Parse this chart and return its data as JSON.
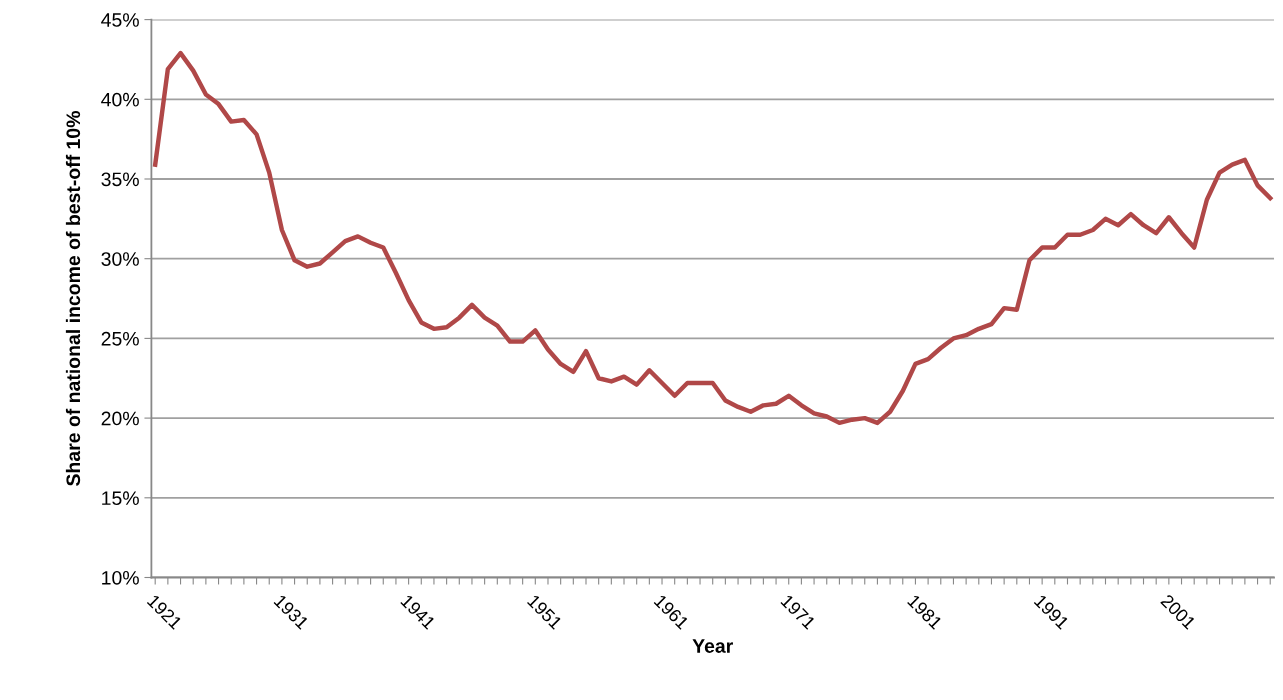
{
  "chart_data": {
    "type": "line",
    "xlabel": "Year",
    "ylabel": "Share of national income of best-off 10%",
    "categories": [
      "1921",
      null,
      null,
      null,
      null,
      null,
      null,
      null,
      null,
      null,
      "1931",
      null,
      null,
      null,
      null,
      null,
      null,
      null,
      null,
      null,
      "1941",
      null,
      null,
      null,
      null,
      null,
      null,
      null,
      null,
      null,
      "1951",
      null,
      null,
      null,
      null,
      null,
      null,
      null,
      null,
      null,
      "1961",
      null,
      null,
      null,
      null,
      null,
      null,
      null,
      null,
      null,
      "1971",
      null,
      null,
      null,
      null,
      null,
      null,
      null,
      null,
      null,
      "1981",
      null,
      null,
      null,
      null,
      null,
      null,
      null,
      null,
      null,
      "1991",
      null,
      null,
      null,
      null,
      null,
      null,
      null,
      null,
      null,
      "2001",
      null,
      null,
      null,
      null,
      null,
      null,
      null,
      null
    ],
    "series": [
      {
        "color": "#b04848",
        "values": [
          35.9,
          41.9,
          42.9,
          41.8,
          40.3,
          39.7,
          38.6,
          38.7,
          37.8,
          35.4,
          31.8,
          29.9,
          29.5,
          29.7,
          30.4,
          31.1,
          31.4,
          31.0,
          30.7,
          29.1,
          27.4,
          26.0,
          25.6,
          25.7,
          26.3,
          27.1,
          26.3,
          25.8,
          24.8,
          24.8,
          25.5,
          24.3,
          23.4,
          22.9,
          24.2,
          22.5,
          22.3,
          22.6,
          22.1,
          23.0,
          22.2,
          21.4,
          22.2,
          22.2,
          22.2,
          21.1,
          20.7,
          20.4,
          20.8,
          20.9,
          21.4,
          20.8,
          20.3,
          20.1,
          19.7,
          19.9,
          20.0,
          19.7,
          20.4,
          21.7,
          23.4,
          23.7,
          24.4,
          25.0,
          25.2,
          25.6,
          25.9,
          26.9,
          26.8,
          29.9,
          30.7,
          30.7,
          31.5,
          31.5,
          31.8,
          32.5,
          32.1,
          32.8,
          32.1,
          31.6,
          32.6,
          31.6,
          30.7,
          33.7,
          35.4,
          35.9,
          36.2,
          34.6,
          33.8
        ]
      }
    ],
    "ylim": [
      10,
      45
    ],
    "yticks": [
      {
        "value": 10,
        "label": "10%"
      },
      {
        "value": 15,
        "label": "15%"
      },
      {
        "value": 20,
        "label": "20%"
      },
      {
        "value": 25,
        "label": "25%"
      },
      {
        "value": 30,
        "label": "30%"
      },
      {
        "value": 35,
        "label": "35%"
      },
      {
        "value": 40,
        "label": "40%"
      },
      {
        "value": 45,
        "label": "45%"
      }
    ],
    "grid": "y",
    "marker": "none",
    "line_style": "solid"
  }
}
